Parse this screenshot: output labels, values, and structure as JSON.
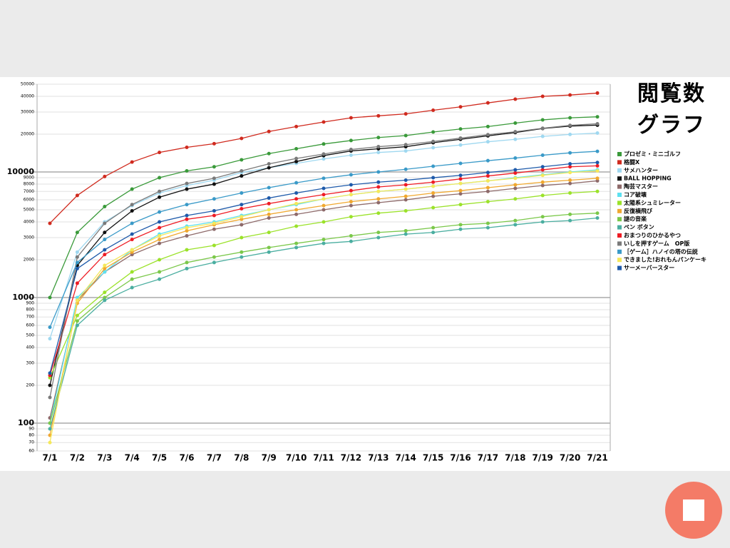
{
  "chart_data": {
    "type": "line",
    "title": "閲覧数グラフ",
    "log_scale": true,
    "grid": true,
    "categories": [
      "7/1",
      "7/2",
      "7/3",
      "7/4",
      "7/5",
      "7/6",
      "7/7",
      "7/8",
      "7/9",
      "7/10",
      "7/11",
      "7/12",
      "7/13",
      "7/14",
      "7/15",
      "7/16",
      "7/17",
      "7/18",
      "7/19",
      "7/20",
      "7/21"
    ],
    "ylim": [
      60,
      50000
    ],
    "yticks": [
      60,
      70,
      80,
      90,
      100,
      200,
      300,
      400,
      500,
      600,
      700,
      800,
      900,
      1000,
      2000,
      3000,
      4000,
      5000,
      6000,
      7000,
      8000,
      9000,
      10000,
      20000,
      30000,
      40000,
      50000
    ],
    "series": [
      {
        "name": "プロゼミ・ミニゴルフ",
        "color": "#3a9a3a",
        "values": [
          1000,
          3300,
          5300,
          7300,
          9000,
          10200,
          11000,
          12500,
          14000,
          15300,
          16700,
          17800,
          18800,
          19500,
          20800,
          22000,
          23000,
          24500,
          26000,
          27000,
          27500
        ]
      },
      {
        "name": "格闘X",
        "color": "#d02a1e",
        "values": [
          3900,
          6500,
          9200,
          12000,
          14300,
          15700,
          16800,
          18500,
          21000,
          23000,
          25000,
          27000,
          28000,
          29000,
          31000,
          33000,
          35500,
          38000,
          40000,
          41000,
          42500
        ]
      },
      {
        "name": "サメハンター",
        "color": "#9fd8f0",
        "values": [
          470,
          2300,
          4000,
          5400,
          6800,
          7800,
          8600,
          9900,
          10800,
          11700,
          12700,
          13600,
          14300,
          14700,
          15600,
          16400,
          17400,
          18200,
          19200,
          19900,
          20400
        ]
      },
      {
        "name": "BALL HOPPING",
        "color": "#111111",
        "values": [
          200,
          1800,
          3300,
          4900,
          6300,
          7300,
          8000,
          9300,
          10800,
          12100,
          13500,
          14700,
          15300,
          15900,
          17100,
          18200,
          19400,
          20600,
          22200,
          23200,
          23600
        ]
      },
      {
        "name": "陶芸マスター",
        "color": "#8e6a6a",
        "values": [
          110,
          950,
          1600,
          2200,
          2700,
          3100,
          3500,
          3800,
          4300,
          4600,
          5000,
          5400,
          5700,
          6000,
          6400,
          6700,
          7000,
          7400,
          7800,
          8100,
          8500
        ]
      },
      {
        "name": "コア破壊",
        "color": "#5de0f0",
        "values": [
          100,
          1000,
          1600,
          2400,
          3200,
          3700,
          4000,
          4500,
          5000,
          5500,
          6100,
          6600,
          7000,
          7300,
          7700,
          8100,
          8500,
          9000,
          9500,
          10000,
          10400
        ]
      },
      {
        "name": "太陽系シュミレーター",
        "color": "#9be22a",
        "values": [
          230,
          720,
          1100,
          1600,
          2000,
          2400,
          2600,
          3000,
          3300,
          3700,
          4000,
          4400,
          4700,
          4900,
          5200,
          5500,
          5800,
          6100,
          6500,
          6800,
          7000
        ]
      },
      {
        "name": "反復横飛び",
        "color": "#f0a830",
        "values": [
          80,
          900,
          1700,
          2300,
          2900,
          3400,
          3800,
          4200,
          4600,
          5000,
          5400,
          5800,
          6100,
          6400,
          6800,
          7100,
          7500,
          7900,
          8300,
          8600,
          8900
        ]
      },
      {
        "name": "謎の音楽",
        "color": "#7bc84a",
        "values": [
          100,
          650,
          1000,
          1400,
          1600,
          1900,
          2100,
          2300,
          2500,
          2700,
          2900,
          3100,
          3300,
          3400,
          3600,
          3800,
          3900,
          4100,
          4400,
          4600,
          4700
        ]
      },
      {
        "name": "ペン ボタン",
        "color": "#4aaea0",
        "values": [
          90,
          600,
          950,
          1200,
          1400,
          1700,
          1900,
          2100,
          2300,
          2500,
          2700,
          2800,
          3000,
          3200,
          3300,
          3500,
          3600,
          3800,
          4000,
          4100,
          4300
        ]
      },
      {
        "name": "おまつりのひかるやつ",
        "color": "#ee1c24",
        "values": [
          240,
          1300,
          2200,
          2900,
          3600,
          4200,
          4500,
          5100,
          5600,
          6100,
          6600,
          7100,
          7600,
          7900,
          8300,
          8800,
          9300,
          9800,
          10400,
          11000,
          11200
        ]
      },
      {
        "name": "いしを押すゲーム　OP版",
        "color": "#7a7a7a",
        "values": [
          160,
          2100,
          3900,
          5500,
          7000,
          8100,
          8900,
          10200,
          11600,
          12800,
          13900,
          15100,
          15900,
          16500,
          17500,
          18600,
          19800,
          20900,
          22300,
          23500,
          24200
        ]
      },
      {
        "name": "［ゲーム］ハノイの塔の伝説",
        "color": "#3a9ac8",
        "values": [
          580,
          1900,
          2900,
          3900,
          4800,
          5500,
          6100,
          6800,
          7500,
          8200,
          8900,
          9500,
          10000,
          10500,
          11100,
          11700,
          12300,
          12900,
          13600,
          14200,
          14600
        ]
      },
      {
        "name": "できました!おれもんパンケーキ",
        "color": "#f5e85a",
        "values": [
          70,
          950,
          1800,
          2400,
          3100,
          3600,
          3900,
          4400,
          5000,
          5600,
          6100,
          6600,
          7000,
          7300,
          7700,
          8100,
          8500,
          8900,
          9400,
          9900,
          10200
        ]
      },
      {
        "name": "サーメーバースター",
        "color": "#1e5aaa",
        "values": [
          250,
          1700,
          2400,
          3200,
          4000,
          4500,
          4900,
          5500,
          6200,
          6800,
          7400,
          7900,
          8300,
          8600,
          9000,
          9400,
          9900,
          10400,
          11000,
          11600,
          11900
        ]
      }
    ]
  }
}
